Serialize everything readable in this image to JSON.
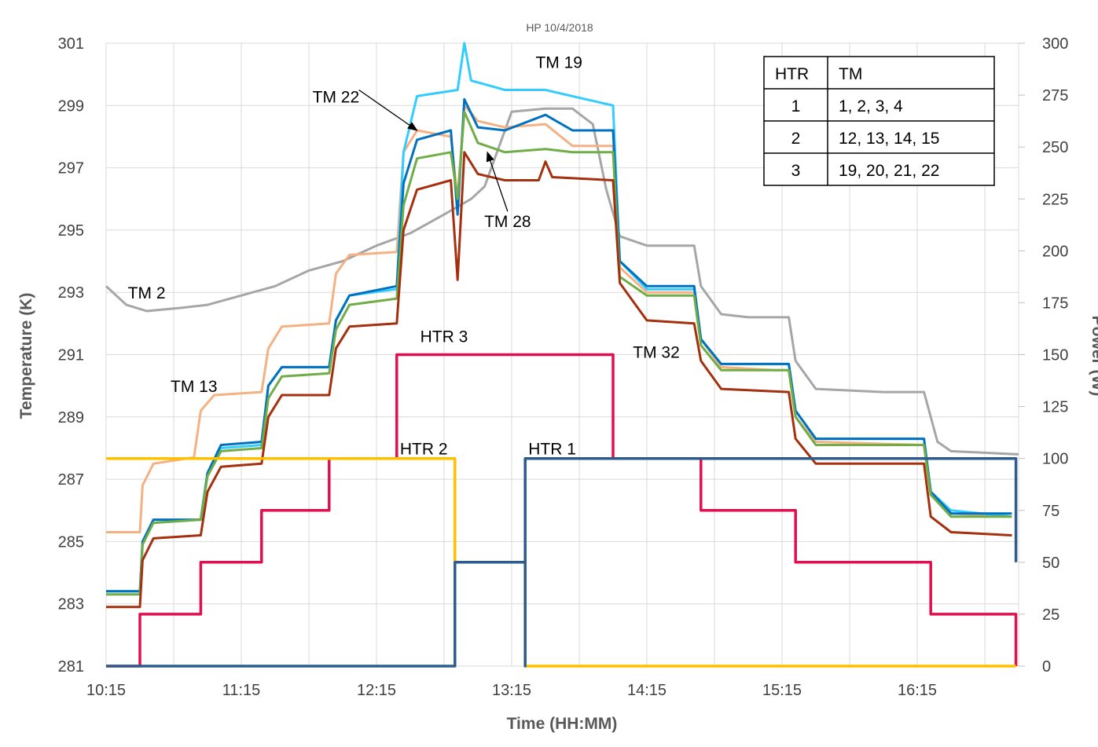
{
  "chart_data": {
    "type": "line",
    "title": "HP  10/4/2018",
    "xlabel": "Time (HH:MM)",
    "ylabel_left": "Temperature (K)",
    "ylabel_right": "Power (W)",
    "x_unit": "hours of day",
    "x_range": [
      10.25,
      17.0
    ],
    "x_ticks": [
      10.25,
      11.25,
      12.25,
      13.25,
      14.25,
      15.25,
      16.25
    ],
    "x_tick_labels": [
      "10:15",
      "11:15",
      "12:15",
      "13:15",
      "14:15",
      "15:15",
      "16:15"
    ],
    "y_left_range": [
      281,
      301
    ],
    "y_left_ticks": [
      281,
      283,
      285,
      287,
      289,
      291,
      293,
      295,
      297,
      299,
      301
    ],
    "y_right_range": [
      0,
      300
    ],
    "y_right_ticks": [
      0,
      25,
      50,
      75,
      100,
      125,
      150,
      175,
      200,
      225,
      250,
      275,
      300
    ],
    "grid": "vertical",
    "series": [
      {
        "name": "TM 2",
        "axis": "left",
        "color": "#A6A6A6",
        "points": [
          [
            10.25,
            293.2
          ],
          [
            10.4,
            292.6
          ],
          [
            10.55,
            292.4
          ],
          [
            10.8,
            292.5
          ],
          [
            11.0,
            292.6
          ],
          [
            11.25,
            292.9
          ],
          [
            11.5,
            293.2
          ],
          [
            11.75,
            293.7
          ],
          [
            12.0,
            294.0
          ],
          [
            12.25,
            294.5
          ],
          [
            12.5,
            294.9
          ],
          [
            12.75,
            295.5
          ],
          [
            12.95,
            296.0
          ],
          [
            13.05,
            296.4
          ],
          [
            13.25,
            298.8
          ],
          [
            13.5,
            298.9
          ],
          [
            13.7,
            298.9
          ],
          [
            13.85,
            298.4
          ],
          [
            13.95,
            296.3
          ],
          [
            14.05,
            294.8
          ],
          [
            14.25,
            294.5
          ],
          [
            14.6,
            294.5
          ],
          [
            14.65,
            293.2
          ],
          [
            14.8,
            292.3
          ],
          [
            15.0,
            292.2
          ],
          [
            15.3,
            292.2
          ],
          [
            15.35,
            290.8
          ],
          [
            15.5,
            289.9
          ],
          [
            16.0,
            289.8
          ],
          [
            16.3,
            289.8
          ],
          [
            16.4,
            288.2
          ],
          [
            16.5,
            287.9
          ],
          [
            17.0,
            287.8
          ]
        ]
      },
      {
        "name": "",
        "axis": "left",
        "color": "#F4B183",
        "points": [
          [
            10.25,
            285.3
          ],
          [
            10.5,
            285.3
          ],
          [
            10.52,
            286.8
          ],
          [
            10.6,
            287.5
          ],
          [
            10.9,
            287.7
          ],
          [
            10.95,
            289.2
          ],
          [
            11.05,
            289.7
          ],
          [
            11.4,
            289.8
          ],
          [
            11.45,
            291.2
          ],
          [
            11.55,
            291.9
          ],
          [
            11.9,
            292.0
          ],
          [
            11.95,
            293.6
          ],
          [
            12.05,
            294.2
          ],
          [
            12.4,
            294.3
          ],
          [
            12.45,
            297.5
          ],
          [
            12.55,
            298.2
          ],
          [
            12.8,
            298.0
          ],
          [
            12.85,
            296.0
          ],
          [
            12.9,
            299.0
          ],
          [
            13.0,
            298.5
          ],
          [
            13.2,
            298.3
          ],
          [
            13.5,
            298.4
          ],
          [
            13.7,
            297.7
          ],
          [
            14.0,
            297.7
          ],
          [
            14.05,
            293.8
          ],
          [
            14.25,
            293.0
          ],
          [
            14.6,
            293.0
          ],
          [
            14.65,
            291.5
          ],
          [
            14.8,
            290.6
          ],
          [
            15.2,
            290.5
          ],
          [
            15.3,
            290.5
          ],
          [
            15.35,
            289.0
          ],
          [
            15.5,
            288.2
          ],
          [
            16.3,
            288.1
          ],
          [
            16.35,
            286.5
          ],
          [
            16.5,
            285.9
          ],
          [
            16.95,
            285.8
          ]
        ]
      },
      {
        "name": "TM 19",
        "axis": "left",
        "color": "#33CCFF",
        "points": [
          [
            10.25,
            283.4
          ],
          [
            10.5,
            283.4
          ],
          [
            10.52,
            285.0
          ],
          [
            10.6,
            285.6
          ],
          [
            10.95,
            285.7
          ],
          [
            11.0,
            287.2
          ],
          [
            11.1,
            288.0
          ],
          [
            11.4,
            288.1
          ],
          [
            11.45,
            290.0
          ],
          [
            11.55,
            290.6
          ],
          [
            11.9,
            290.6
          ],
          [
            11.95,
            292.1
          ],
          [
            12.05,
            292.9
          ],
          [
            12.4,
            293.1
          ],
          [
            12.45,
            297.5
          ],
          [
            12.55,
            299.3
          ],
          [
            12.85,
            299.5
          ],
          [
            12.9,
            301.0
          ],
          [
            12.95,
            299.8
          ],
          [
            13.2,
            299.5
          ],
          [
            13.5,
            299.5
          ],
          [
            13.8,
            299.2
          ],
          [
            14.0,
            299.0
          ],
          [
            14.05,
            294.0
          ],
          [
            14.25,
            293.1
          ],
          [
            14.6,
            293.1
          ],
          [
            14.65,
            291.5
          ],
          [
            14.8,
            290.7
          ],
          [
            15.3,
            290.7
          ],
          [
            15.35,
            289.2
          ],
          [
            15.5,
            288.3
          ],
          [
            16.3,
            288.3
          ],
          [
            16.35,
            286.6
          ],
          [
            16.5,
            286.0
          ],
          [
            16.95,
            285.8
          ]
        ]
      },
      {
        "name": "TM 22",
        "axis": "left",
        "color": "#0070C0",
        "points": [
          [
            10.25,
            283.4
          ],
          [
            10.5,
            283.4
          ],
          [
            10.52,
            285.0
          ],
          [
            10.6,
            285.7
          ],
          [
            10.95,
            285.7
          ],
          [
            11.0,
            287.2
          ],
          [
            11.1,
            288.1
          ],
          [
            11.4,
            288.2
          ],
          [
            11.45,
            290.0
          ],
          [
            11.55,
            290.6
          ],
          [
            11.9,
            290.6
          ],
          [
            11.95,
            292.1
          ],
          [
            12.05,
            292.9
          ],
          [
            12.4,
            293.2
          ],
          [
            12.45,
            296.5
          ],
          [
            12.55,
            297.9
          ],
          [
            12.8,
            298.2
          ],
          [
            12.85,
            295.5
          ],
          [
            12.9,
            299.2
          ],
          [
            13.0,
            298.3
          ],
          [
            13.2,
            298.2
          ],
          [
            13.5,
            298.7
          ],
          [
            13.7,
            298.2
          ],
          [
            14.0,
            298.2
          ],
          [
            14.05,
            294.0
          ],
          [
            14.25,
            293.2
          ],
          [
            14.6,
            293.2
          ],
          [
            14.65,
            291.5
          ],
          [
            14.8,
            290.7
          ],
          [
            15.3,
            290.7
          ],
          [
            15.35,
            289.2
          ],
          [
            15.5,
            288.3
          ],
          [
            16.3,
            288.3
          ],
          [
            16.35,
            286.6
          ],
          [
            16.5,
            285.9
          ],
          [
            16.95,
            285.9
          ]
        ]
      },
      {
        "name": "TM 28",
        "axis": "left",
        "color": "#70AD47",
        "points": [
          [
            10.25,
            283.3
          ],
          [
            10.5,
            283.3
          ],
          [
            10.52,
            284.9
          ],
          [
            10.6,
            285.6
          ],
          [
            10.95,
            285.7
          ],
          [
            11.0,
            287.1
          ],
          [
            11.1,
            287.9
          ],
          [
            11.4,
            288.0
          ],
          [
            11.45,
            289.6
          ],
          [
            11.55,
            290.3
          ],
          [
            11.9,
            290.4
          ],
          [
            11.95,
            291.8
          ],
          [
            12.05,
            292.6
          ],
          [
            12.4,
            292.8
          ],
          [
            12.45,
            295.8
          ],
          [
            12.55,
            297.3
          ],
          [
            12.8,
            297.5
          ],
          [
            12.85,
            296.0
          ],
          [
            12.9,
            298.8
          ],
          [
            13.0,
            297.8
          ],
          [
            13.2,
            297.5
          ],
          [
            13.5,
            297.6
          ],
          [
            13.7,
            297.5
          ],
          [
            14.0,
            297.5
          ],
          [
            14.05,
            293.5
          ],
          [
            14.25,
            292.9
          ],
          [
            14.6,
            292.9
          ],
          [
            14.65,
            291.3
          ],
          [
            14.8,
            290.5
          ],
          [
            15.3,
            290.5
          ],
          [
            15.35,
            289.0
          ],
          [
            15.5,
            288.1
          ],
          [
            16.3,
            288.1
          ],
          [
            16.35,
            286.5
          ],
          [
            16.5,
            285.8
          ],
          [
            16.95,
            285.8
          ]
        ]
      },
      {
        "name": "TM 32",
        "axis": "left",
        "color": "#A5300F",
        "points": [
          [
            10.25,
            282.9
          ],
          [
            10.5,
            282.9
          ],
          [
            10.52,
            284.4
          ],
          [
            10.6,
            285.1
          ],
          [
            10.95,
            285.2
          ],
          [
            11.0,
            286.6
          ],
          [
            11.1,
            287.4
          ],
          [
            11.4,
            287.5
          ],
          [
            11.45,
            289.0
          ],
          [
            11.55,
            289.7
          ],
          [
            11.9,
            289.7
          ],
          [
            11.95,
            291.2
          ],
          [
            12.05,
            291.9
          ],
          [
            12.4,
            292.0
          ],
          [
            12.45,
            295.0
          ],
          [
            12.55,
            296.3
          ],
          [
            12.8,
            296.6
          ],
          [
            12.85,
            293.4
          ],
          [
            12.9,
            297.5
          ],
          [
            13.0,
            296.8
          ],
          [
            13.2,
            296.6
          ],
          [
            13.45,
            296.6
          ],
          [
            13.5,
            297.2
          ],
          [
            13.55,
            296.7
          ],
          [
            14.0,
            296.6
          ],
          [
            14.05,
            293.3
          ],
          [
            14.25,
            292.1
          ],
          [
            14.6,
            292.0
          ],
          [
            14.65,
            290.8
          ],
          [
            14.8,
            289.9
          ],
          [
            15.3,
            289.8
          ],
          [
            15.35,
            288.3
          ],
          [
            15.5,
            287.5
          ],
          [
            16.3,
            287.5
          ],
          [
            16.35,
            285.8
          ],
          [
            16.5,
            285.3
          ],
          [
            16.95,
            285.2
          ]
        ]
      },
      {
        "name": "HTR 3",
        "axis": "right",
        "color": "#E0104F",
        "points": [
          [
            10.25,
            0
          ],
          [
            10.5,
            0
          ],
          [
            10.5,
            25
          ],
          [
            10.95,
            25
          ],
          [
            10.95,
            50
          ],
          [
            11.4,
            50
          ],
          [
            11.4,
            75
          ],
          [
            11.9,
            75
          ],
          [
            11.9,
            100
          ],
          [
            12.4,
            100
          ],
          [
            12.4,
            150
          ],
          [
            14.0,
            150
          ],
          [
            14.0,
            100
          ],
          [
            14.65,
            100
          ],
          [
            14.65,
            75
          ],
          [
            15.35,
            75
          ],
          [
            15.35,
            50
          ],
          [
            16.35,
            50
          ],
          [
            16.35,
            25
          ],
          [
            16.98,
            25
          ],
          [
            16.98,
            0
          ]
        ]
      },
      {
        "name": "HTR 2",
        "axis": "right",
        "color": "#FFC000",
        "points": [
          [
            10.25,
            100
          ],
          [
            12.83,
            100
          ],
          [
            12.83,
            50
          ],
          [
            13.35,
            50
          ],
          [
            13.35,
            0
          ],
          [
            16.98,
            0
          ]
        ]
      },
      {
        "name": "HTR 1",
        "axis": "right",
        "color": "#2E5C8A",
        "points": [
          [
            10.25,
            0
          ],
          [
            12.83,
            0
          ],
          [
            12.83,
            50
          ],
          [
            13.35,
            50
          ],
          [
            13.35,
            0
          ],
          [
            13.35,
            100
          ],
          [
            16.98,
            100
          ],
          [
            16.98,
            50
          ]
        ]
      }
    ],
    "annotations": [
      {
        "text": "TM 19",
        "x": 13.6,
        "y": 300.2
      },
      {
        "text": "TM 22",
        "x": 11.95,
        "y": 299.1
      },
      {
        "text": "TM 28",
        "x": 13.22,
        "y": 295.1
      },
      {
        "text": "TM 2",
        "x": 10.55,
        "y": 292.8
      },
      {
        "text": "TM 13",
        "x": 10.9,
        "y": 289.8
      },
      {
        "text": "HTR 3",
        "x": 12.75,
        "y": 291.4
      },
      {
        "text": "TM 32",
        "x": 14.32,
        "y": 290.9
      },
      {
        "text": "HTR 2",
        "x": 12.6,
        "y": 287.8
      },
      {
        "text": "HTR 1",
        "x": 13.55,
        "y": 287.8
      }
    ],
    "legend_table": {
      "headers": [
        "HTR",
        "TM"
      ],
      "rows": [
        [
          "1",
          "1, 2, 3, 4"
        ],
        [
          "2",
          "12, 13, 14, 15"
        ],
        [
          "3",
          "19, 20, 21, 22"
        ]
      ]
    }
  }
}
